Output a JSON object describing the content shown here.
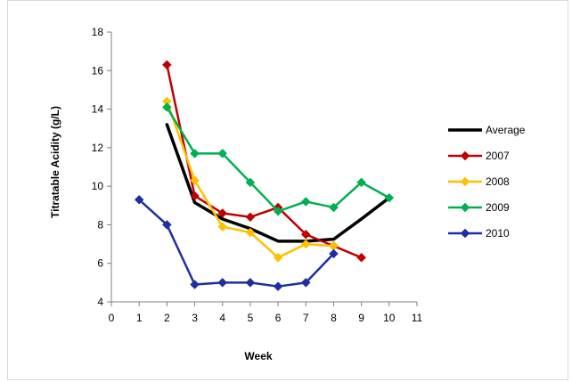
{
  "chart_data": {
    "type": "line",
    "xlabel": "Week",
    "ylabel": "Titratable Acidity (g/L)",
    "xlim": [
      0,
      11
    ],
    "ylim": [
      4,
      18
    ],
    "x_ticks": [
      0,
      1,
      2,
      3,
      4,
      5,
      6,
      7,
      8,
      9,
      10,
      11
    ],
    "y_ticks": [
      4,
      6,
      8,
      10,
      12,
      14,
      16,
      18
    ],
    "grid": false,
    "legend_position": "right",
    "series": [
      {
        "name": "Average",
        "color": "#000000",
        "marker": "none",
        "x": [
          2,
          3,
          4,
          5,
          6,
          7,
          8,
          9,
          10
        ],
        "y": [
          13.2,
          9.15,
          8.3,
          7.8,
          7.15,
          7.15,
          7.25,
          8.3,
          9.4
        ]
      },
      {
        "name": "2007",
        "color": "#c00000",
        "marker": "diamond",
        "x": [
          2,
          3,
          4,
          5,
          6,
          7,
          8,
          9
        ],
        "y": [
          16.3,
          9.5,
          8.6,
          8.4,
          8.9,
          7.5,
          6.9,
          6.3
        ]
      },
      {
        "name": "2008",
        "color": "#ffc000",
        "marker": "diamond",
        "x": [
          2,
          3,
          4,
          5,
          6,
          7,
          8
        ],
        "y": [
          14.4,
          10.3,
          7.9,
          7.6,
          6.3,
          7.0,
          6.9
        ]
      },
      {
        "name": "2009",
        "color": "#00b050",
        "marker": "diamond",
        "x": [
          2,
          3,
          4,
          5,
          6,
          7,
          8,
          9,
          10
        ],
        "y": [
          14.1,
          11.7,
          11.7,
          10.2,
          8.7,
          9.2,
          8.9,
          10.2,
          9.4
        ]
      },
      {
        "name": "2010",
        "color": "#1f2f9f",
        "marker": "diamond",
        "x": [
          1,
          2,
          3,
          4,
          5,
          6,
          7,
          8
        ],
        "y": [
          9.3,
          8.0,
          4.9,
          5.0,
          5.0,
          4.8,
          5.0,
          6.5
        ]
      }
    ]
  }
}
